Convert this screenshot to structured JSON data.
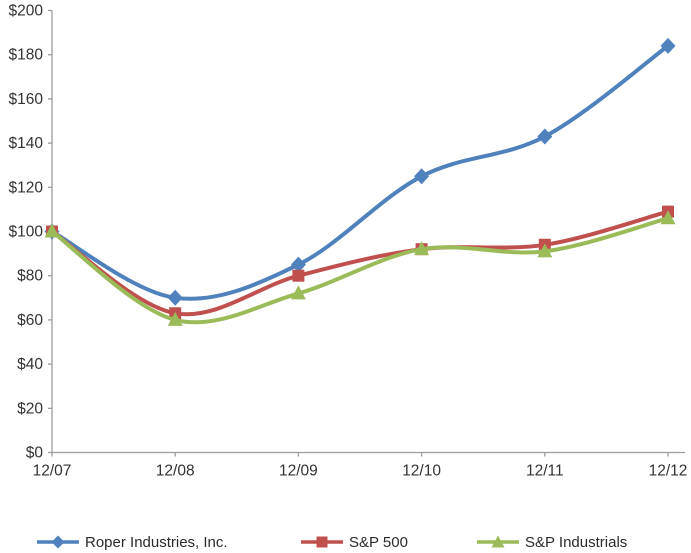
{
  "chart_data": {
    "type": "line",
    "title": "",
    "xlabel": "",
    "ylabel": "",
    "smoothed": true,
    "grid": false,
    "legend_position": "bottom",
    "categories": [
      "12/07",
      "12/08",
      "12/09",
      "12/10",
      "12/11",
      "12/12"
    ],
    "series": [
      {
        "name": "Roper Industries, Inc.",
        "color": "#4F81BD",
        "marker": "diamond",
        "values": [
          100,
          70,
          85,
          125,
          143,
          184
        ]
      },
      {
        "name": "S&P 500",
        "color": "#C0504D",
        "marker": "square",
        "values": [
          100,
          63,
          80,
          92,
          94,
          109
        ]
      },
      {
        "name": "S&P Industrials",
        "color": "#9BBB59",
        "marker": "triangle",
        "values": [
          100,
          60,
          72,
          92,
          91,
          106
        ]
      }
    ],
    "y_axis": {
      "min": 0,
      "max": 200,
      "step": 20,
      "tick_labels": [
        "$0",
        "$20",
        "$40",
        "$60",
        "$80",
        "$100",
        "$120",
        "$140",
        "$160",
        "$180",
        "$200"
      ]
    },
    "x_axis": {
      "tick_labels": [
        "12/07",
        "12/08",
        "12/09",
        "12/10",
        "12/11",
        "12/12"
      ]
    }
  },
  "colors": {
    "axis": "#9C9C9C",
    "tick_text": "#333333",
    "background": "#FFFFFF"
  }
}
